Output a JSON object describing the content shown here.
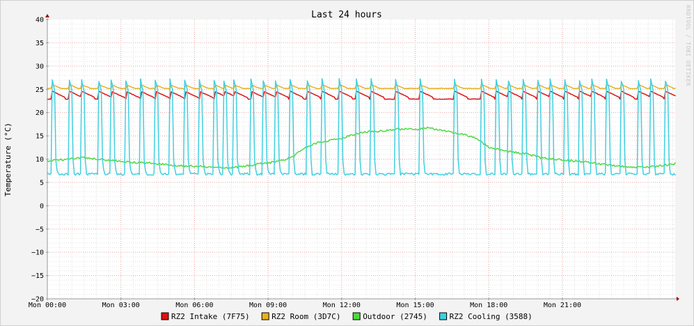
{
  "chart_data": {
    "type": "line",
    "title": "Last 24 hours",
    "ylabel": "Temperature (°C)",
    "watermark": "RRDTOOL / TOBI OETIKER",
    "ylim": [
      -20,
      40
    ],
    "yticks": [
      40,
      35,
      30,
      25,
      20,
      15,
      10,
      5,
      0,
      -5,
      -10,
      -15,
      -20
    ],
    "ytick_labels": [
      "40",
      "35",
      "30",
      "25",
      "20",
      "15",
      "10",
      "5",
      "0",
      "−5",
      "−10",
      "−15",
      "−20"
    ],
    "xlim_hours": [
      0,
      25.6
    ],
    "xticks_hours": [
      0,
      3,
      6,
      9,
      12,
      15,
      18,
      21
    ],
    "xtick_labels": [
      "Mon 00:00",
      "Mon 03:00",
      "Mon 06:00",
      "Mon 09:00",
      "Mon 12:00",
      "Mon 15:00",
      "Mon 18:00",
      "Mon 21:00"
    ],
    "grid": true,
    "legend_position": "bottom",
    "series": [
      {
        "name": "RZ2 Intake (7F75)",
        "color": "#e01010",
        "baseline": 22.9,
        "peak": 24.6,
        "x_hours": [
          0.2,
          0.9,
          1.4,
          2.1,
          2.6,
          3.2,
          3.8,
          4.4,
          5.0,
          5.6,
          6.2,
          6.8,
          7.2,
          7.6,
          8.3,
          8.8,
          9.3,
          9.9,
          10.6,
          11.2,
          11.9,
          12.6,
          13.2,
          14.2,
          15.2,
          16.6,
          17.7,
          18.3,
          18.8,
          19.4,
          20.0,
          20.5,
          21.1,
          21.7,
          22.2,
          22.8,
          23.4,
          24.1,
          24.6,
          25.2
        ]
      },
      {
        "name": "RZ2 Room (3D7C)",
        "color": "#e8b020",
        "baseline": 25.2,
        "peak": 26.0
      },
      {
        "name": "Outdoor (2745)",
        "color": "#50d840",
        "x": [
          0.0,
          0.5,
          1.0,
          1.5,
          2.0,
          2.5,
          3.0,
          3.5,
          4.0,
          4.5,
          5.0,
          5.5,
          6.0,
          6.5,
          7.0,
          7.5,
          8.0,
          8.5,
          9.0,
          9.5,
          10.0,
          10.5,
          11.0,
          11.5,
          12.0,
          12.5,
          13.0,
          13.5,
          14.0,
          14.5,
          15.0,
          15.5,
          16.0,
          16.5,
          17.0,
          17.5,
          18.0,
          18.5,
          19.0,
          19.5,
          20.0,
          20.5,
          21.0,
          21.5,
          22.0,
          22.5,
          23.0,
          23.5,
          24.0,
          24.5,
          25.0,
          25.6
        ],
        "y": [
          9.6,
          9.8,
          10.2,
          10.3,
          10.0,
          9.8,
          9.5,
          9.3,
          9.2,
          9.0,
          8.8,
          8.6,
          8.5,
          8.4,
          8.3,
          8.2,
          8.4,
          8.9,
          9.2,
          9.6,
          10.5,
          12.5,
          13.5,
          14.0,
          14.5,
          15.3,
          15.8,
          16.0,
          16.3,
          16.5,
          16.4,
          16.7,
          16.3,
          15.8,
          15.3,
          14.5,
          12.5,
          12.0,
          11.5,
          11.2,
          10.5,
          10.0,
          9.8,
          9.6,
          9.4,
          9.0,
          8.7,
          8.5,
          8.3,
          8.3,
          8.6,
          9.0
        ]
      },
      {
        "name": "RZ2 Cooling (3588)",
        "color": "#40d0e0",
        "baseline": 6.8,
        "peak": 27.0,
        "x_hours": [
          0.2,
          0.9,
          1.4,
          2.1,
          2.6,
          3.2,
          3.8,
          4.4,
          5.0,
          5.6,
          6.2,
          6.8,
          7.2,
          7.6,
          8.3,
          8.8,
          9.3,
          9.9,
          10.6,
          11.2,
          11.9,
          12.6,
          13.2,
          14.2,
          15.2,
          16.6,
          17.7,
          18.3,
          18.8,
          19.4,
          20.0,
          20.5,
          21.1,
          21.7,
          22.2,
          22.8,
          23.4,
          24.1,
          24.6,
          25.2
        ]
      }
    ]
  }
}
